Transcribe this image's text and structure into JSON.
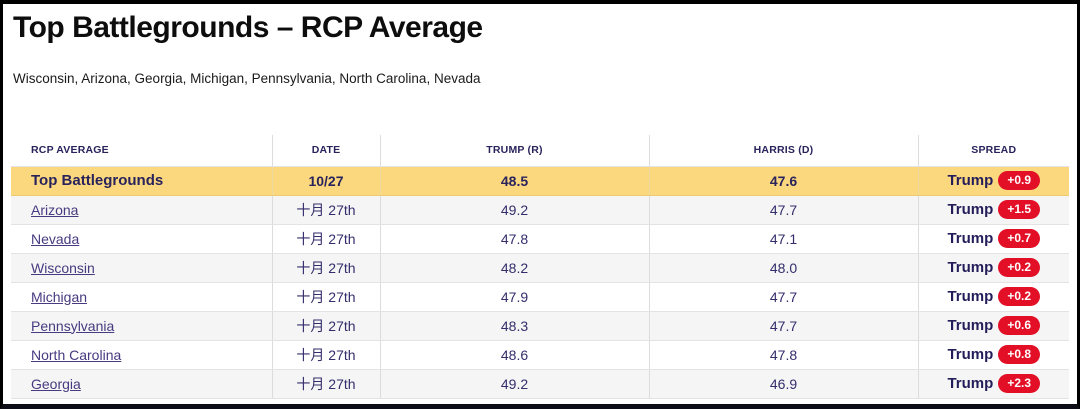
{
  "page": {
    "title": "Top Battlegrounds – RCP Average",
    "subtitle": "Wisconsin, Arizona, Georgia, Michigan, Pennsylvania, North Carolina, Nevada"
  },
  "table": {
    "columns": {
      "average": "RCP Average",
      "date": "Date",
      "trump": "Trump (R)",
      "harris": "Harris (D)",
      "spread": "Spread"
    },
    "summary": {
      "name": "Top Battlegrounds",
      "date": "10/27",
      "trump": "48.5",
      "harris": "47.6",
      "spread_label": "Trump",
      "spread_value": "+0.9"
    },
    "rows": [
      {
        "name": "Arizona",
        "date": "十月 27th",
        "trump": "49.2",
        "harris": "47.7",
        "spread_label": "Trump",
        "spread_value": "+1.5"
      },
      {
        "name": "Nevada",
        "date": "十月 27th",
        "trump": "47.8",
        "harris": "47.1",
        "spread_label": "Trump",
        "spread_value": "+0.7"
      },
      {
        "name": "Wisconsin",
        "date": "十月 27th",
        "trump": "48.2",
        "harris": "48.0",
        "spread_label": "Trump",
        "spread_value": "+0.2"
      },
      {
        "name": "Michigan",
        "date": "十月 27th",
        "trump": "47.9",
        "harris": "47.7",
        "spread_label": "Trump",
        "spread_value": "+0.2"
      },
      {
        "name": "Pennsylvania",
        "date": "十月 27th",
        "trump": "48.3",
        "harris": "47.7",
        "spread_label": "Trump",
        "spread_value": "+0.6"
      },
      {
        "name": "North Carolina",
        "date": "十月 27th",
        "trump": "48.6",
        "harris": "47.8",
        "spread_label": "Trump",
        "spread_value": "+0.8"
      },
      {
        "name": "Georgia",
        "date": "十月 27th",
        "trump": "49.2",
        "harris": "46.9",
        "spread_label": "Trump",
        "spread_value": "+2.3"
      }
    ]
  },
  "colors": {
    "highlight_row_bg": "#fbd77e",
    "alt_row_bg": "#f5f5f5",
    "badge_red": "#e20f26",
    "header_navy": "#29235c",
    "link_purple": "#473a80",
    "frame_black": "#000000"
  }
}
